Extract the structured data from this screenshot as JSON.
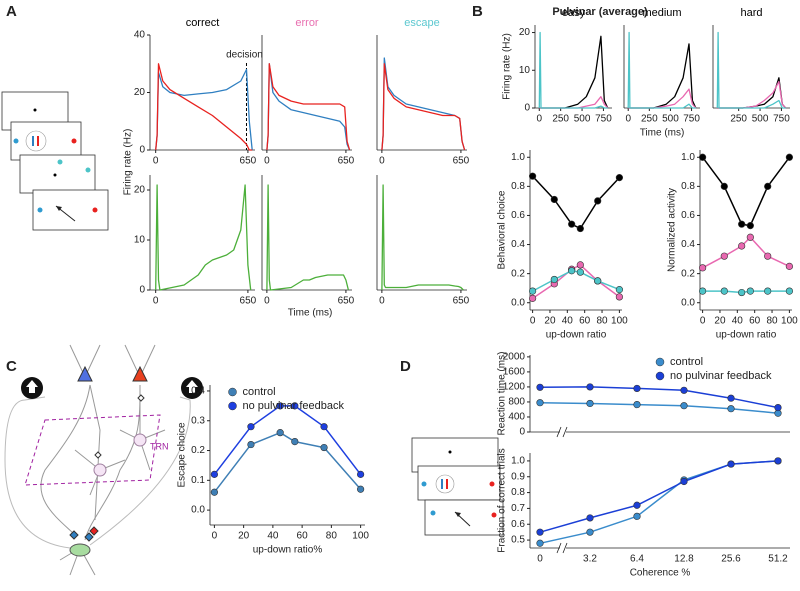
{
  "figure": {
    "panels": [
      "A",
      "B",
      "C",
      "D"
    ],
    "a_ylabel": "Firing rate (Hz)",
    "a_xlabel": "Time (ms)",
    "b_title": "Pulvinar (average)",
    "trn_label": "TRN"
  },
  "chart_data": [
    {
      "type": "line",
      "title": "correct",
      "title_color": "#000000",
      "x": [
        0,
        10,
        20,
        50,
        100,
        200,
        300,
        400,
        500,
        600,
        640,
        660,
        680
      ],
      "series": [
        {
          "color": "#2f7fc1",
          "values": [
            0,
            5,
            27,
            22,
            20,
            19,
            19.5,
            20,
            21,
            24,
            28,
            10,
            0
          ]
        },
        {
          "color": "#e8221f",
          "values": [
            0,
            5,
            30,
            24,
            21,
            18,
            15,
            12,
            8,
            4,
            2,
            0,
            0
          ]
        }
      ],
      "xlim": [
        -40,
        700
      ],
      "xticks": [
        0,
        650
      ],
      "ylim": [
        0,
        40
      ],
      "yticks": [
        0,
        20,
        40
      ],
      "annotations": [
        {
          "text": "decision",
          "x": 640
        }
      ]
    },
    {
      "type": "line",
      "title": "error",
      "title_color": "#e86fb0",
      "x": [
        0,
        10,
        20,
        50,
        100,
        200,
        300,
        400,
        500,
        600,
        640,
        660,
        680
      ],
      "series": [
        {
          "color": "#2f7fc1",
          "values": [
            0,
            5,
            30,
            20,
            17,
            14,
            13,
            12,
            11,
            10,
            8,
            2,
            0
          ]
        },
        {
          "color": "#e8221f",
          "values": [
            0,
            5,
            30,
            22,
            19,
            17,
            16,
            16,
            16,
            16,
            15,
            3,
            0
          ]
        }
      ],
      "xlim": [
        -40,
        700
      ],
      "xticks": [
        0,
        650
      ],
      "ylim": [
        0,
        40
      ]
    },
    {
      "type": "line",
      "title": "escape",
      "title_color": "#5cc8d0",
      "x": [
        0,
        10,
        20,
        50,
        100,
        200,
        300,
        400,
        500,
        600,
        640,
        660,
        680
      ],
      "series": [
        {
          "color": "#2f7fc1",
          "values": [
            0,
            5,
            32,
            22,
            19,
            16,
            15,
            14,
            13,
            12,
            11,
            3,
            0
          ]
        },
        {
          "color": "#e8221f",
          "values": [
            0,
            5,
            30,
            21,
            18,
            15,
            14,
            13,
            12,
            12,
            11,
            3,
            0
          ]
        }
      ],
      "xlim": [
        -40,
        700
      ],
      "xticks": [
        0,
        650
      ],
      "ylim": [
        0,
        40
      ]
    },
    {
      "type": "line",
      "x": [
        0,
        10,
        20,
        30,
        200,
        300,
        350,
        400,
        500,
        550,
        600,
        630,
        650,
        670
      ],
      "series": [
        {
          "color": "#4caf3a",
          "values": [
            0,
            21,
            2,
            0,
            1,
            3,
            5,
            6,
            7,
            8,
            12,
            21,
            5,
            0
          ]
        }
      ],
      "xlim": [
        -40,
        700
      ],
      "xticks": [
        0,
        650
      ],
      "ylim": [
        0,
        23
      ],
      "yticks": [
        0,
        10,
        20
      ]
    },
    {
      "type": "line",
      "x": [
        0,
        10,
        20,
        30,
        200,
        300,
        350,
        400,
        500,
        550,
        600,
        630,
        650,
        670
      ],
      "series": [
        {
          "color": "#4caf3a",
          "values": [
            0,
            21,
            2,
            0,
            0.5,
            2,
            2,
            2.5,
            3,
            3,
            3,
            3,
            2,
            0
          ]
        }
      ],
      "xlim": [
        -40,
        700
      ],
      "xticks": [
        0,
        650
      ],
      "ylim": [
        0,
        23
      ]
    },
    {
      "type": "line",
      "x": [
        0,
        10,
        20,
        30,
        200,
        300,
        350,
        400,
        500,
        550,
        600,
        630,
        650,
        670
      ],
      "series": [
        {
          "color": "#4caf3a",
          "values": [
            0,
            21,
            1,
            0.5,
            0.5,
            1,
            1,
            1,
            1,
            1,
            0.8,
            0.7,
            0.5,
            0
          ]
        }
      ],
      "xlim": [
        -40,
        700
      ],
      "xticks": [
        0,
        650
      ],
      "ylim": [
        0,
        23
      ]
    },
    {
      "type": "line",
      "title": "easy",
      "ylabel": "Firing rate (Hz)",
      "x": [
        0,
        10,
        20,
        300,
        450,
        550,
        650,
        720,
        760,
        800
      ],
      "series": [
        {
          "color": "#000000",
          "values": [
            0,
            0,
            0,
            0,
            1,
            3,
            8,
            19,
            2,
            0
          ]
        },
        {
          "color": "#e868b0",
          "values": [
            0,
            0,
            0,
            0,
            0,
            0.5,
            1,
            3,
            1,
            0
          ]
        },
        {
          "color": "#4cc4c8",
          "values": [
            0,
            20,
            0,
            0,
            0,
            0,
            0,
            0.5,
            0,
            0
          ]
        }
      ],
      "xlim": [
        -50,
        850
      ],
      "xticks": [
        0,
        250,
        500,
        750
      ],
      "ylim": [
        0,
        22
      ],
      "yticks": [
        0,
        10,
        20
      ]
    },
    {
      "type": "line",
      "title": "medium",
      "xlabel": "Time (ms)",
      "x": [
        0,
        10,
        20,
        300,
        450,
        550,
        650,
        720,
        760,
        800
      ],
      "series": [
        {
          "color": "#000000",
          "values": [
            0,
            0,
            0,
            0,
            1,
            3,
            8,
            17,
            2,
            0
          ]
        },
        {
          "color": "#e868b0",
          "values": [
            0,
            0,
            0,
            0,
            0.5,
            1,
            3,
            5,
            1,
            0
          ]
        },
        {
          "color": "#4cc4c8",
          "values": [
            0,
            20,
            0,
            0,
            0,
            0,
            0,
            1,
            0,
            0
          ]
        }
      ],
      "xlim": [
        -50,
        850
      ],
      "xticks": [
        0,
        250,
        500,
        750
      ],
      "ylim": [
        0,
        22
      ]
    },
    {
      "type": "line",
      "title": "hard",
      "x": [
        0,
        10,
        20,
        300,
        450,
        550,
        650,
        720,
        760,
        800
      ],
      "series": [
        {
          "color": "#000000",
          "values": [
            0,
            0,
            0,
            0,
            0.5,
            1,
            3,
            8,
            1,
            0
          ]
        },
        {
          "color": "#e868b0",
          "values": [
            0,
            0,
            0,
            0,
            0.5,
            2,
            4,
            7,
            1,
            0
          ]
        },
        {
          "color": "#4cc4c8",
          "values": [
            0,
            20,
            0,
            0,
            0,
            0,
            1,
            2,
            0,
            0
          ]
        }
      ],
      "xlim": [
        -50,
        850
      ],
      "xticks": [
        250,
        500,
        750
      ],
      "ylim": [
        0,
        22
      ]
    },
    {
      "type": "line",
      "ylabel": "Behavioral choice",
      "xlabel": "up-down ratio",
      "markers": true,
      "x": [
        0,
        25,
        45,
        55,
        75,
        100
      ],
      "series": [
        {
          "color": "#000000",
          "values": [
            0.87,
            0.71,
            0.54,
            0.51,
            0.7,
            0.86
          ]
        },
        {
          "color": "#e868b0",
          "values": [
            0.03,
            0.13,
            0.23,
            0.26,
            0.15,
            0.04
          ]
        },
        {
          "color": "#4cc4c8",
          "values": [
            0.08,
            0.16,
            0.22,
            0.21,
            0.15,
            0.09
          ]
        }
      ],
      "xlim": [
        -3,
        103
      ],
      "xticks": [
        0,
        20,
        40,
        60,
        80,
        100
      ],
      "ylim": [
        -0.05,
        1.05
      ],
      "yticks": [
        {
          "value": 0,
          "label": "0.0"
        },
        0.2,
        0.4,
        0.6,
        0.8,
        {
          "value": 1,
          "label": "1.0"
        }
      ]
    },
    {
      "type": "line",
      "ylabel": "Normalized activity",
      "xlabel": "up-down ratio",
      "markers": true,
      "x": [
        0,
        25,
        45,
        55,
        75,
        100
      ],
      "series": [
        {
          "color": "#000000",
          "values": [
            1.0,
            0.8,
            0.54,
            0.53,
            0.8,
            1.0
          ]
        },
        {
          "color": "#e868b0",
          "values": [
            0.24,
            0.32,
            0.39,
            0.45,
            0.32,
            0.25
          ]
        },
        {
          "color": "#4cc4c8",
          "values": [
            0.08,
            0.08,
            0.07,
            0.08,
            0.08,
            0.08
          ]
        }
      ],
      "xlim": [
        -3,
        103
      ],
      "xticks": [
        0,
        20,
        40,
        60,
        80,
        100
      ],
      "ylim": [
        -0.05,
        1.05
      ],
      "yticks": [
        {
          "value": 0,
          "label": "0.0"
        },
        0.2,
        0.4,
        0.6,
        0.8,
        {
          "value": 1,
          "label": "1.0"
        }
      ]
    },
    {
      "type": "line",
      "ylabel": "Escape choice",
      "xlabel": "up-down ratio%",
      "markers": true,
      "legend": "upper center",
      "x": [
        0,
        25,
        45,
        55,
        75,
        100
      ],
      "series": [
        {
          "name": "control",
          "color": "#3f7fb5",
          "values": [
            0.06,
            0.22,
            0.26,
            0.23,
            0.21,
            0.07
          ]
        },
        {
          "name": "no pulvinar feedback",
          "color": "#1e3fe0",
          "values": [
            0.12,
            0.28,
            0.35,
            0.35,
            0.28,
            0.12
          ]
        }
      ],
      "xlim": [
        -3,
        103
      ],
      "xticks": [
        0,
        20,
        40,
        60,
        80,
        100
      ],
      "ylim": [
        -0.05,
        0.42
      ],
      "yticks": [
        {
          "value": 0,
          "label": "0.0"
        },
        0.1,
        0.2,
        0.3,
        0.4
      ]
    },
    {
      "type": "line",
      "ylabel": "Reaction time (ms)",
      "markers": true,
      "legend": "upper right",
      "series": [
        {
          "name": "control",
          "color": "#3a8ccc",
          "values": [
            780,
            760,
            730,
            700,
            620,
            500
          ]
        },
        {
          "name": "no pulvinar feedback",
          "color": "#1b3fd6",
          "values": [
            1190,
            1200,
            1160,
            1110,
            900,
            650
          ]
        }
      ],
      "ylim": [
        0,
        2050
      ],
      "yticks": [
        0,
        400,
        800,
        1200,
        1600,
        2000
      ]
    },
    {
      "type": "line",
      "ylabel": "Fraction of correct trials",
      "xlabel": "Coherence %",
      "markers": true,
      "categories": [
        "0",
        "3.2",
        "6.4",
        "12.8",
        "25.6",
        "51.2"
      ],
      "series": [
        {
          "color": "#3a8ccc",
          "values": [
            0.48,
            0.55,
            0.65,
            0.88,
            0.98,
            1.0
          ]
        },
        {
          "color": "#1b3fd6",
          "values": [
            0.55,
            0.64,
            0.72,
            0.87,
            0.98,
            1.0
          ]
        }
      ],
      "ylim": [
        0.45,
        1.05
      ],
      "yticks": [
        0.5,
        0.6,
        0.7,
        0.8,
        0.9,
        {
          "value": 1,
          "label": "1.0"
        }
      ]
    }
  ]
}
